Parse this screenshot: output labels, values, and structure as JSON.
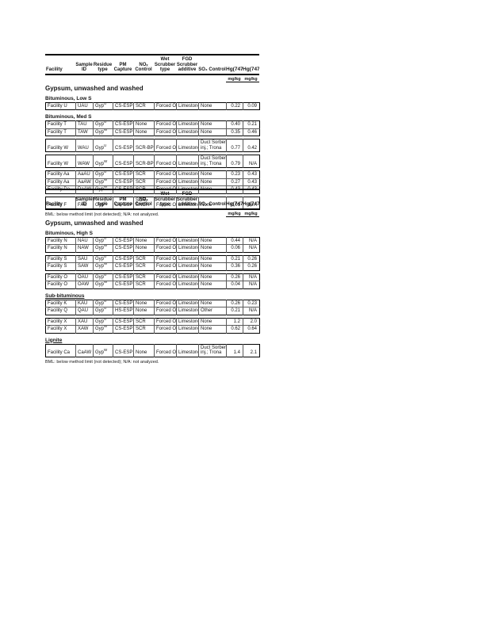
{
  "page": {
    "background": "#ffffff",
    "text_color": "#161616"
  },
  "table_header": {
    "columns": [
      {
        "label": "Facility"
      },
      {
        "label": "Sample\nID"
      },
      {
        "label": "Residue\ntype"
      },
      {
        "label": "PM\nCapture"
      },
      {
        "label": "NOₓ\nControl"
      },
      {
        "label": "Wet\nScrubber\ntype"
      },
      {
        "label": "FGD\nScrubber\nadditive"
      },
      {
        "label": "SO₃ Control"
      },
      {
        "label": "Hg(7470)",
        "strong": true
      },
      {
        "label": "Hg(7472)",
        "strong": true
      }
    ],
    "units": [
      "",
      "",
      "",
      "",
      "",
      "",
      "",
      "",
      "mg/kg",
      "mg/kg"
    ]
  },
  "footnote": "BML: below method limit (not detected);  N/A: not analyzed.",
  "blocks": [
    {
      "title": "Gypsum, unwashed and washed",
      "show_footnote": true,
      "sections": [
        {
          "label": "Bituminous, Low S",
          "groups": [
            [
              [
                "Facility U",
                "UAU",
                "Gyp^U",
                "CS-ESP",
                "SCR",
                "Forced Ox.",
                "Limestone",
                "None",
                "0.22",
                "0.09"
              ]
            ]
          ]
        },
        {
          "label": "Bituminous, Med S",
          "groups": [
            [
              [
                "Facility T",
                "TAU",
                "Gyp^U",
                "CS-ESP",
                "None",
                "Forced Ox.",
                "Limestone",
                "None",
                "0.40",
                "0.21"
              ],
              [
                "Facility T",
                "TAW",
                "Gyp^W",
                "CS-ESP",
                "None",
                "Forced Ox.",
                "Limestone",
                "None",
                "0.35",
                "0.46"
              ]
            ],
            [
              [
                "Facility W",
                "WAU",
                "Gyp^U",
                "CS-ESP",
                "SCR-BP",
                "Forced Ox.",
                "Limestone",
                "Duct Sorbent\ninj.; Trona",
                "0.77",
                "0.42"
              ]
            ],
            [
              [
                "Facility W",
                "WAW",
                "Gyp^W",
                "CS-ESP",
                "SCR-BP",
                "Forced Ox.",
                "Limestone",
                "Duct Sorbent\ninj.; Trona",
                "0.79",
                "N/A"
              ]
            ],
            [
              [
                "Facility Aa",
                "AaAU",
                "Gyp^U",
                "CS-ESP",
                "SCR",
                "Forced Ox.",
                "Limestone",
                "None",
                "0.23",
                "0.43"
              ],
              [
                "Facility Aa",
                "AaAW",
                "Gyp^W",
                "CS-ESP",
                "SCR",
                "Forced Ox.",
                "Limestone",
                "None",
                "0.27",
                "0.43"
              ],
              [
                "Facility Da",
                "DaAW",
                "Gyp^W",
                "CS-ESP",
                "SCR",
                "Forced Ox.",
                "Limestone",
                "None",
                "0.43",
                "0.43"
              ]
            ],
            [
              [
                "Facility F",
                "FAU",
                "Gyp^U",
                "CS-ESP",
                "SCR,\nSNCR",
                "Forced Ox.",
                "Limestone",
                "None",
                "0.01",
                "N/A"
              ]
            ]
          ]
        }
      ]
    },
    {
      "title": "Gypsum, unwashed and washed",
      "show_footnote": true,
      "sections": [
        {
          "label": "Bituminous, High S",
          "groups": [
            [
              [
                "Facility N",
                "NAU",
                "Gyp^U",
                "CS-ESP",
                "None",
                "Forced Ox.",
                "Limestone",
                "None",
                "0.44",
                "N/A"
              ],
              [
                "Facility N",
                "NAW",
                "Gyp^W",
                "CS-ESP",
                "None",
                "Forced Ox.",
                "Limestone",
                "None",
                "0.06",
                "N/A"
              ]
            ],
            [
              [
                "Facility S",
                "SAU",
                "Gyp^U",
                "CS-ESP",
                "SCR",
                "Forced Ox.",
                "Limestone",
                "None",
                "0.21",
                "0.26"
              ],
              [
                "Facility S",
                "SAW",
                "Gyp^W",
                "CS-ESP",
                "SCR",
                "Forced Ox.",
                "Limestone",
                "None",
                "0.36",
                "0.26"
              ]
            ],
            [
              [
                "Facility O",
                "OAU",
                "Gyp^U",
                "CS-ESP",
                "SCR",
                "Forced Ox.",
                "Limestone",
                "None",
                "0.26",
                "N/A"
              ],
              [
                "Facility O",
                "OAW",
                "Gyp^W",
                "CS-ESP",
                "SCR",
                "Forced Ox.",
                "Limestone",
                "None",
                "0.04",
                "N/A"
              ]
            ]
          ]
        },
        {
          "label": "Sub-bituminous",
          "underline": true,
          "groups": [
            [
              [
                "Facility K",
                "KAU",
                "Gyp^U",
                "CS-ESP",
                "None",
                "Forced Ox.",
                "Limestone",
                "None",
                "0.26",
                "0.23"
              ],
              [
                "Facility Q",
                "QAU",
                "Gyp^U",
                "HS-ESP",
                "None",
                "Forced Ox.",
                "Limestone",
                "Other",
                "0.21",
                "N/A"
              ]
            ],
            [
              [
                "Facility X",
                "XAU",
                "Gyp^U",
                "CS-ESP",
                "SCR",
                "Forced Ox.",
                "Limestone",
                "None",
                "1.2",
                "2.0"
              ],
              [
                "Facility X",
                "XAW",
                "Gyp^W",
                "CS-ESP",
                "SCR",
                "Forced Ox.",
                "Limestone",
                "None",
                "0.62",
                "0.64"
              ]
            ]
          ]
        },
        {
          "label": "Lignite",
          "underline": true,
          "groups": [
            [
              [
                "Facility Ca",
                "CaAW",
                "Gyp^W",
                "CS-ESP",
                "None",
                "Forced Ox.",
                "Limestone",
                "Duct Sorbent\ninj.; Trona",
                "1.4",
                "2.1"
              ]
            ]
          ]
        }
      ]
    }
  ]
}
